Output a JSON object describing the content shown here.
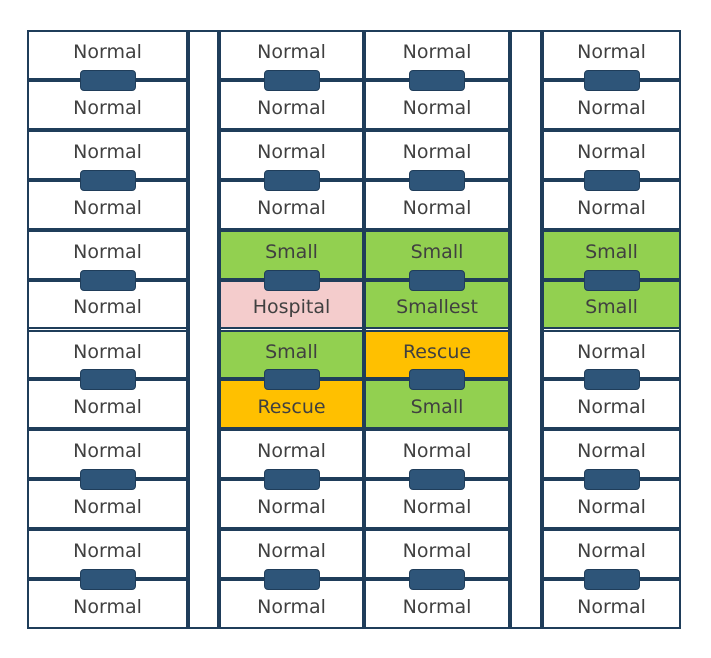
{
  "colors": {
    "line": "#1F3D5A",
    "connector": "#2E5579",
    "Normal": "#ffffff",
    "Small": "#92D050",
    "Smallest": "#92D050",
    "Hospital": "#F4CCCC",
    "Rescue": "#FFC000",
    "text": "#404040"
  },
  "columns": [
    {
      "name": "column-1",
      "rows": [
        {
          "top": "Normal",
          "bottom": "Normal"
        },
        {
          "top": "Normal",
          "bottom": "Normal"
        },
        {
          "top": "Normal",
          "bottom": "Normal"
        },
        {
          "top": "Normal",
          "bottom": "Normal"
        },
        {
          "top": "Normal",
          "bottom": "Normal"
        },
        {
          "top": "Normal",
          "bottom": "Normal"
        }
      ]
    },
    {
      "name": "column-2",
      "rows": [
        {
          "top": "Normal",
          "bottom": "Normal"
        },
        {
          "top": "Normal",
          "bottom": "Normal"
        },
        {
          "top": "Small",
          "bottom": "Hospital"
        },
        {
          "top": "Small",
          "bottom": "Rescue"
        },
        {
          "top": "Normal",
          "bottom": "Normal"
        },
        {
          "top": "Normal",
          "bottom": "Normal"
        }
      ]
    },
    {
      "name": "column-3",
      "rows": [
        {
          "top": "Normal",
          "bottom": "Normal"
        },
        {
          "top": "Normal",
          "bottom": "Normal"
        },
        {
          "top": "Small",
          "bottom": "Smallest"
        },
        {
          "top": "Rescue",
          "bottom": "Small"
        },
        {
          "top": "Normal",
          "bottom": "Normal"
        },
        {
          "top": "Normal",
          "bottom": "Normal"
        }
      ]
    },
    {
      "name": "column-4",
      "rows": [
        {
          "top": "Normal",
          "bottom": "Normal"
        },
        {
          "top": "Normal",
          "bottom": "Normal"
        },
        {
          "top": "Small",
          "bottom": "Small"
        },
        {
          "top": "Normal",
          "bottom": "Normal"
        },
        {
          "top": "Normal",
          "bottom": "Normal"
        },
        {
          "top": "Normal",
          "bottom": "Normal"
        }
      ]
    }
  ]
}
